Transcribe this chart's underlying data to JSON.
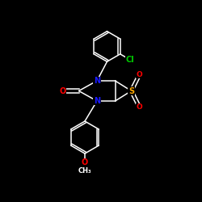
{
  "background_color": "#000000",
  "atom_colors": {
    "C": "#ffffff",
    "N": "#1a1aff",
    "O": "#ff0000",
    "S": "#ffaa00",
    "Cl": "#00cc00",
    "H": "#ffffff"
  },
  "bond_color": "#ffffff",
  "bond_lw": 1.1
}
